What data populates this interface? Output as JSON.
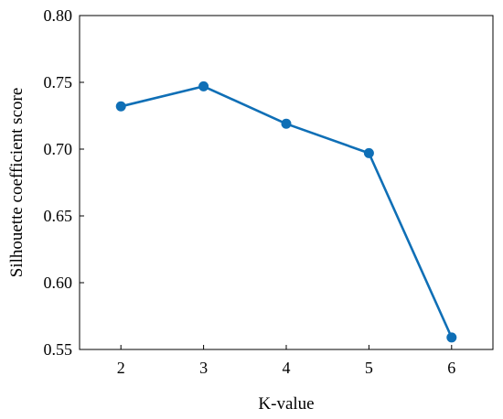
{
  "chart_data": {
    "type": "line",
    "title": "",
    "xlabel": "K-value",
    "ylabel": "Silhouette coefficient score",
    "x": [
      2,
      3,
      4,
      5,
      6
    ],
    "xticks": [
      "2",
      "3",
      "4",
      "5",
      "6"
    ],
    "xlim": [
      1.5,
      6.5
    ],
    "ylim": [
      0.55,
      0.8
    ],
    "yticks": [
      "0.55",
      "0.60",
      "0.65",
      "0.70",
      "0.75",
      "0.80"
    ],
    "grid": false,
    "legend": "none",
    "series": [
      {
        "values": [
          0.732,
          0.747,
          0.719,
          0.697,
          0.559
        ],
        "color": "#0f6fb6",
        "marker": "circle"
      }
    ]
  }
}
